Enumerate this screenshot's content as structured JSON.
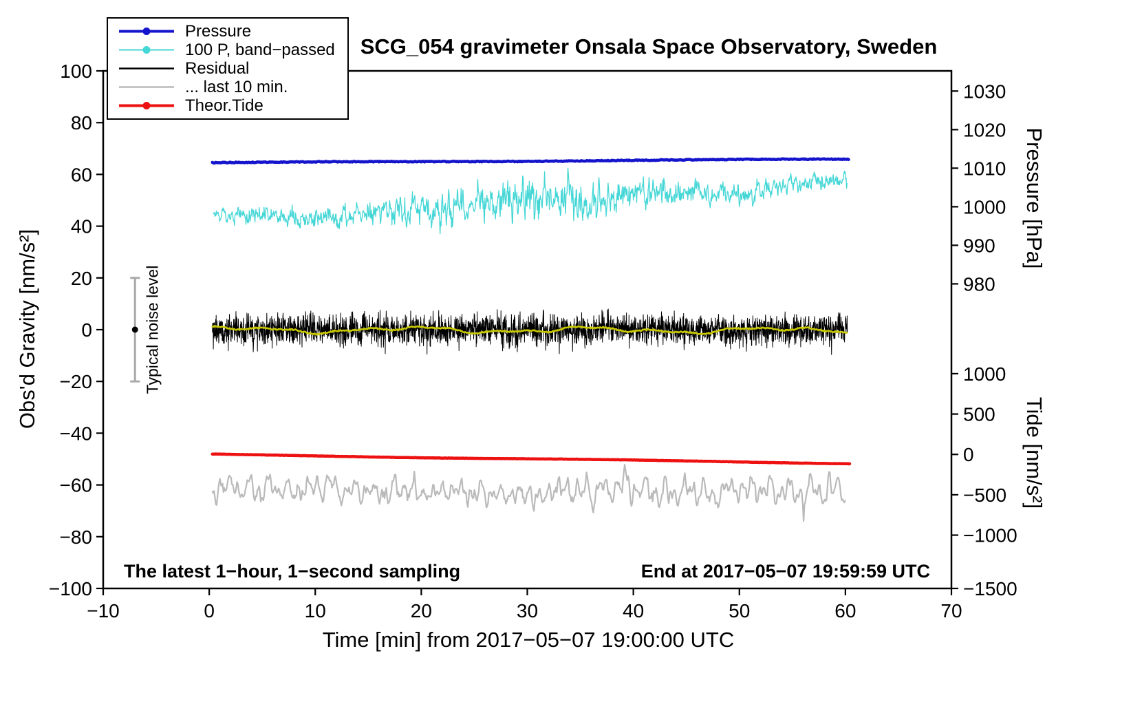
{
  "title": "SCG_054 gravimeter Onsala Space Observatory, Sweden",
  "annotations": {
    "sampling_note": "The latest 1−hour, 1−second sampling",
    "end_time_note": "End at 2017−05−07 19:59:59 UTC",
    "noise_label": "Typical noise level"
  },
  "axes": {
    "x_label": "Time [min] from 2017−05−07 19:00:00 UTC",
    "y_left_label": "Obs'd Gravity [nm/s²]",
    "y_right_top_label": "Pressure [hPa]",
    "y_right_bottom_label": "Tide [nm/s²]"
  },
  "legend": {
    "items": [
      {
        "id": "pressure",
        "label": "Pressure",
        "color": "#1414cc",
        "lw": 4,
        "marker": true
      },
      {
        "id": "band-passed",
        "label": "100 P, band−passed",
        "color": "#45d6d6",
        "lw": 2,
        "marker": true
      },
      {
        "id": "residual",
        "label": "Residual",
        "color": "#000000",
        "lw": 2.5,
        "marker": false
      },
      {
        "id": "last-10-min",
        "label": "... last 10 min.",
        "color": "#bababa",
        "lw": 2.5,
        "marker": false
      },
      {
        "id": "theor-tide",
        "label": "Theor.Tide",
        "color": "#ee1111",
        "lw": 4,
        "marker": true
      }
    ]
  },
  "chart_data": {
    "type": "line",
    "title": "SCG_054 gravimeter Onsala Space Observatory, Sweden",
    "xlabel": "Time [min] from 2017−05−07 19:00:00 UTC",
    "ylabel": "Obs'd Gravity [nm/s²]",
    "y2label_top": "Pressure [hPa]",
    "y2label_bottom": "Tide [nm/s²]",
    "xlim": [
      -10,
      70
    ],
    "ylim": [
      -100,
      100
    ],
    "grid": false,
    "legend_position": "top-left",
    "x_ticks": [
      {
        "label": "−10",
        "value": -10
      },
      {
        "label": "0",
        "value": 0
      },
      {
        "label": "10",
        "value": 10
      },
      {
        "label": "20",
        "value": 20
      },
      {
        "label": "30",
        "value": 30
      },
      {
        "label": "40",
        "value": 40
      },
      {
        "label": "50",
        "value": 50
      },
      {
        "label": "60",
        "value": 60
      },
      {
        "label": "70",
        "value": 70
      }
    ],
    "y_ticks": [
      {
        "label": "100",
        "value": 100
      },
      {
        "label": "80",
        "value": 80
      },
      {
        "label": "60",
        "value": 60
      },
      {
        "label": "40",
        "value": 40
      },
      {
        "label": "20",
        "value": 20
      },
      {
        "label": "0",
        "value": 0
      },
      {
        "label": "−20",
        "value": -20
      },
      {
        "label": "−40",
        "value": -40
      },
      {
        "label": "−60",
        "value": -60
      },
      {
        "label": "−80",
        "value": -80
      },
      {
        "label": "−100",
        "value": -100
      }
    ],
    "pressure_ticks": [
      {
        "label": "1030",
        "pos": 92.2
      },
      {
        "label": "1020",
        "pos": 77.3
      },
      {
        "label": "1010",
        "pos": 62.4
      },
      {
        "label": "1000",
        "pos": 47.5
      },
      {
        "label": "990",
        "pos": 32.6
      },
      {
        "label": "980",
        "pos": 17.7
      }
    ],
    "tide_ticks": [
      {
        "label": "1000",
        "pos": -17
      },
      {
        "label": "500",
        "pos": -32.6
      },
      {
        "label": "0",
        "pos": -48.2
      },
      {
        "label": "−500",
        "pos": -63.8
      },
      {
        "label": "−1000",
        "pos": -79.4
      },
      {
        "label": "−1500",
        "pos": -100
      }
    ],
    "noise_bar": {
      "x": -7,
      "center_y": 0,
      "half_range": 20
    },
    "series": [
      {
        "id": "pressure",
        "name": "Pressure",
        "color": "#1414cc",
        "width": 4.5,
        "kind": "smooth",
        "x_start": 0.3,
        "x_end": 60.4,
        "y_start": 64.5,
        "y_end": 65.9,
        "noise_amp": 0.15
      },
      {
        "id": "band-passed",
        "name": "100 P, band−passed",
        "color": "#45d6d6",
        "width": 1.3,
        "kind": "noisy",
        "x_start": 0.4,
        "x_end": 60.2,
        "y_start": 42,
        "y_end": 57,
        "noise_amp": 3.4
      },
      {
        "id": "residual",
        "name": "Residual",
        "color": "#000000",
        "width": 1,
        "kind": "dense-noise",
        "x_start": 0.3,
        "x_end": 60.2,
        "y_start": 0,
        "y_end": 0,
        "noise_amp": 3.1
      },
      {
        "id": "residual-10min-mean",
        "name": "Residual smoothed (10 min)",
        "color": "#c9c900",
        "width": 2.6,
        "kind": "smooth-wiggle",
        "x_start": 0.3,
        "x_end": 60.2,
        "y_start": 0,
        "y_end": -0.3,
        "noise_amp": 1.2
      },
      {
        "id": "theor-tide",
        "name": "Theor.Tide",
        "color": "#ee1111",
        "width": 4.5,
        "kind": "smooth",
        "x_start": 0.3,
        "x_end": 60.5,
        "y_start": -48.2,
        "y_end": -51.7,
        "noise_amp": 0.05
      },
      {
        "id": "last-10-min",
        "name": "... last 10 min.",
        "color": "#bababa",
        "width": 2.2,
        "kind": "wavy",
        "x_start": 0.3,
        "x_end": 60.0,
        "y_start": -62,
        "y_end": -62.3,
        "noise_amp": 3.5
      }
    ]
  }
}
